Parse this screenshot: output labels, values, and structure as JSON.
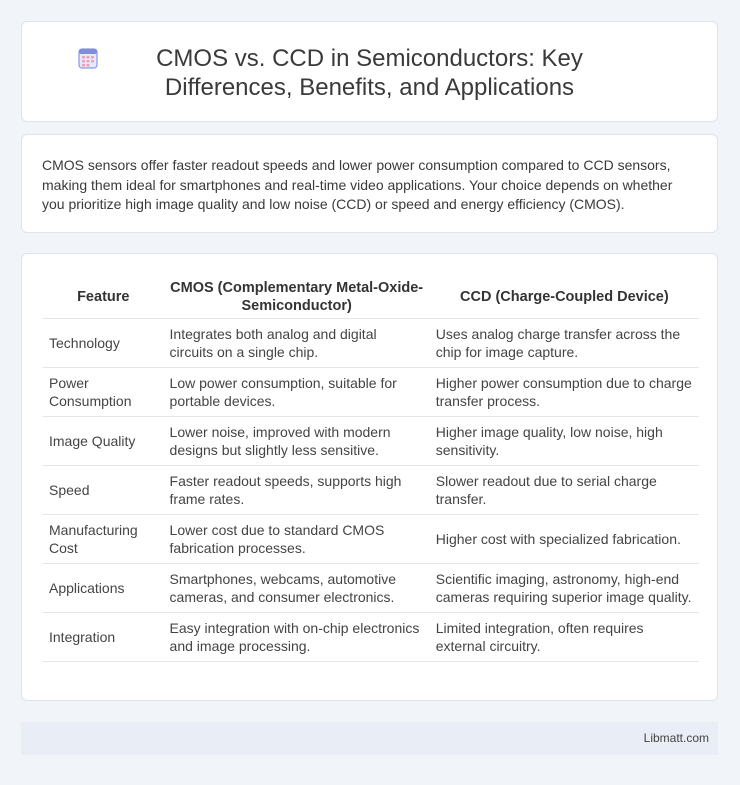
{
  "header": {
    "title": "CMOS vs. CCD in Semiconductors: Key Differences, Benefits, and Applications",
    "icon": "calendar-grid-icon"
  },
  "summary": {
    "text": "CMOS sensors offer faster readout speeds and lower power consumption compared to CCD sensors, making them ideal for smartphones and real-time video applications. Your choice depends on whether you prioritize high image quality and low noise (CCD) or speed and energy efficiency (CMOS)."
  },
  "table": {
    "headers": [
      "Feature",
      "CMOS (Complementary Metal-Oxide-Semiconductor)",
      "CCD (Charge-Coupled Device)"
    ],
    "rows": [
      [
        "Technology",
        "Integrates both analog and digital circuits on a single chip.",
        "Uses analog charge transfer across the chip for image capture."
      ],
      [
        "Power Consumption",
        "Low power consumption, suitable for portable devices.",
        "Higher power consumption due to charge transfer process."
      ],
      [
        "Image Quality",
        "Lower noise, improved with modern designs but slightly less sensitive.",
        "Higher image quality, low noise, high sensitivity."
      ],
      [
        "Speed",
        "Faster readout speeds, supports high frame rates.",
        "Slower readout due to serial charge transfer."
      ],
      [
        "Manufacturing Cost",
        "Lower cost due to standard CMOS fabrication processes.",
        "Higher cost with specialized fabrication."
      ],
      [
        "Applications",
        "Smartphones, webcams, automotive cameras, and consumer electronics.",
        "Scientific imaging, astronomy, high-end cameras requiring superior image quality."
      ],
      [
        "Integration",
        "Easy integration with on-chip electronics and image processing.",
        "Limited integration, often requires external circuitry."
      ]
    ]
  },
  "footer": {
    "site": "Libmatt.com"
  },
  "colors": {
    "background": "#f1f4f9",
    "card": "#ffffff",
    "footer": "#e8edf6",
    "icon_accent": "#6f7fe0"
  }
}
